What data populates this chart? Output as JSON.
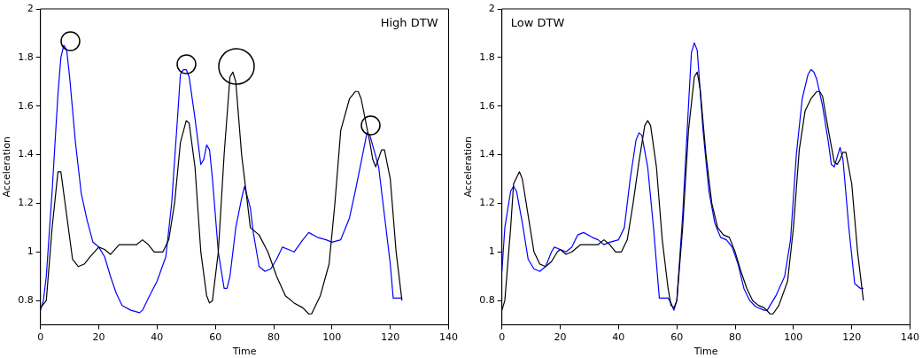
{
  "chart_data": [
    {
      "type": "line",
      "title": "High DTW",
      "xlabel": "Time",
      "ylabel": "Acceleration",
      "xlim": [
        0,
        140
      ],
      "xticks": [
        0,
        20,
        40,
        60,
        80,
        100,
        120,
        140
      ],
      "ylim": [
        0.7,
        2
      ],
      "yticks": [
        0.8,
        1,
        1.2,
        1.4,
        1.6,
        1.8,
        2
      ],
      "grid": false,
      "legend": false,
      "marker": "none",
      "line_style": "solid",
      "series": [
        {
          "color": "#000000",
          "x": [
            0,
            2,
            4,
            6,
            7,
            9,
            11,
            13,
            15,
            17,
            20,
            22,
            24,
            27,
            33,
            35,
            37,
            39,
            42,
            44,
            46,
            48,
            50,
            51,
            53,
            55,
            57,
            58,
            59,
            61,
            63,
            65,
            66,
            67,
            69,
            72,
            75,
            78,
            81,
            84,
            87,
            90,
            92,
            93,
            96,
            99,
            101,
            103,
            106,
            108,
            109,
            110,
            113,
            114,
            115,
            117,
            118,
            120,
            122,
            124
          ],
          "values": [
            0.77,
            0.8,
            1.1,
            1.33,
            1.33,
            1.15,
            0.97,
            0.94,
            0.95,
            0.98,
            1.02,
            1.01,
            0.99,
            1.03,
            1.03,
            1.05,
            1.03,
            1.0,
            1.0,
            1.05,
            1.2,
            1.45,
            1.54,
            1.53,
            1.35,
            1.0,
            0.82,
            0.79,
            0.8,
            1.0,
            1.4,
            1.72,
            1.74,
            1.7,
            1.4,
            1.1,
            1.07,
            1.0,
            0.9,
            0.82,
            0.79,
            0.77,
            0.745,
            0.745,
            0.82,
            0.95,
            1.2,
            1.5,
            1.63,
            1.66,
            1.66,
            1.63,
            1.45,
            1.38,
            1.35,
            1.42,
            1.42,
            1.3,
            1.0,
            0.8
          ]
        },
        {
          "color": "#0000ff",
          "x": [
            0,
            1,
            2,
            4,
            6,
            7,
            8,
            9,
            10,
            12,
            14,
            16,
            18,
            20,
            22,
            24,
            26,
            28,
            31,
            34,
            35,
            37,
            40,
            43,
            45,
            47,
            48,
            49,
            50,
            51,
            53,
            55,
            56,
            57,
            58,
            59,
            61,
            63,
            64,
            65,
            67,
            69,
            70,
            72,
            73,
            75,
            77,
            79,
            81,
            83,
            85,
            87,
            90,
            92,
            95,
            98,
            100,
            103,
            106,
            108,
            110,
            112,
            113,
            116,
            117,
            120,
            121,
            124
          ],
          "values": [
            0.76,
            0.8,
            0.9,
            1.25,
            1.65,
            1.8,
            1.85,
            1.83,
            1.72,
            1.45,
            1.24,
            1.13,
            1.04,
            1.02,
            0.98,
            0.9,
            0.83,
            0.78,
            0.76,
            0.75,
            0.76,
            0.81,
            0.88,
            0.98,
            1.2,
            1.55,
            1.73,
            1.75,
            1.75,
            1.72,
            1.55,
            1.36,
            1.38,
            1.44,
            1.42,
            1.3,
            1.0,
            0.85,
            0.85,
            0.9,
            1.1,
            1.22,
            1.27,
            1.18,
            1.08,
            0.94,
            0.92,
            0.93,
            0.97,
            1.02,
            1.01,
            1.0,
            1.05,
            1.08,
            1.06,
            1.05,
            1.04,
            1.05,
            1.14,
            1.25,
            1.37,
            1.49,
            1.48,
            1.35,
            1.25,
            0.95,
            0.81,
            0.81
          ]
        }
      ]
    },
    {
      "type": "line",
      "title": "Low DTW",
      "xlabel": "Time",
      "ylabel": "Acceleration",
      "xlim": [
        0,
        140
      ],
      "xticks": [
        0,
        20,
        40,
        60,
        80,
        100,
        120,
        140
      ],
      "ylim": [
        0.7,
        2
      ],
      "yticks": [
        0.8,
        1,
        1.2,
        1.4,
        1.6,
        1.8,
        2
      ],
      "grid": false,
      "legend": false,
      "marker": "none",
      "line_style": "solid",
      "series": [
        {
          "color": "#000000",
          "x": [
            0,
            1,
            3,
            4,
            6,
            7,
            9,
            11,
            13,
            15,
            17,
            19,
            20,
            22,
            24,
            27,
            33,
            35,
            37,
            39,
            41,
            43,
            45,
            47,
            49,
            50,
            51,
            53,
            55,
            57,
            58,
            59,
            60,
            62,
            64,
            66,
            67,
            68,
            70,
            72,
            74,
            76,
            78,
            80,
            82,
            84,
            86,
            88,
            90,
            92,
            93,
            95,
            98,
            100,
            102,
            104,
            106,
            108,
            109,
            110,
            112,
            114,
            115,
            116,
            117,
            118,
            120,
            122,
            124
          ],
          "values": [
            0.76,
            0.8,
            1.1,
            1.28,
            1.33,
            1.3,
            1.15,
            1.0,
            0.95,
            0.94,
            0.96,
            1.0,
            1.01,
            0.99,
            1.0,
            1.03,
            1.03,
            1.05,
            1.03,
            1.0,
            1.0,
            1.05,
            1.2,
            1.37,
            1.52,
            1.54,
            1.52,
            1.35,
            1.05,
            0.85,
            0.78,
            0.77,
            0.8,
            1.1,
            1.5,
            1.72,
            1.74,
            1.67,
            1.4,
            1.2,
            1.1,
            1.07,
            1.06,
            1.0,
            0.92,
            0.85,
            0.8,
            0.78,
            0.77,
            0.745,
            0.745,
            0.78,
            0.88,
            1.1,
            1.42,
            1.58,
            1.63,
            1.66,
            1.66,
            1.64,
            1.5,
            1.37,
            1.36,
            1.38,
            1.41,
            1.41,
            1.28,
            1.0,
            0.8
          ]
        },
        {
          "color": "#0000ff",
          "x": [
            0,
            1,
            3,
            4,
            5,
            7,
            9,
            11,
            13,
            15,
            17,
            18,
            20,
            22,
            24,
            26,
            28,
            31,
            33,
            35,
            37,
            40,
            42,
            44,
            46,
            47,
            48,
            50,
            52,
            54,
            57,
            58,
            59,
            60,
            62,
            64,
            65,
            66,
            67,
            69,
            71,
            73,
            75,
            77,
            79,
            81,
            83,
            85,
            87,
            90,
            91,
            94,
            97,
            99,
            101,
            103,
            105,
            106,
            107,
            108,
            110,
            112,
            113,
            114,
            115,
            116,
            117,
            119,
            121,
            123,
            124
          ],
          "values": [
            0.92,
            1.1,
            1.25,
            1.27,
            1.25,
            1.12,
            0.97,
            0.93,
            0.92,
            0.94,
            1.0,
            1.02,
            1.01,
            1.0,
            1.02,
            1.07,
            1.08,
            1.06,
            1.05,
            1.03,
            1.04,
            1.05,
            1.1,
            1.3,
            1.46,
            1.49,
            1.48,
            1.35,
            1.1,
            0.81,
            0.81,
            0.79,
            0.76,
            0.8,
            1.15,
            1.6,
            1.82,
            1.86,
            1.83,
            1.5,
            1.25,
            1.12,
            1.06,
            1.05,
            1.02,
            0.95,
            0.85,
            0.8,
            0.775,
            0.76,
            0.76,
            0.82,
            0.9,
            1.05,
            1.4,
            1.63,
            1.73,
            1.75,
            1.74,
            1.71,
            1.6,
            1.45,
            1.36,
            1.35,
            1.39,
            1.43,
            1.38,
            1.1,
            0.87,
            0.85,
            0.85
          ]
        }
      ]
    }
  ]
}
